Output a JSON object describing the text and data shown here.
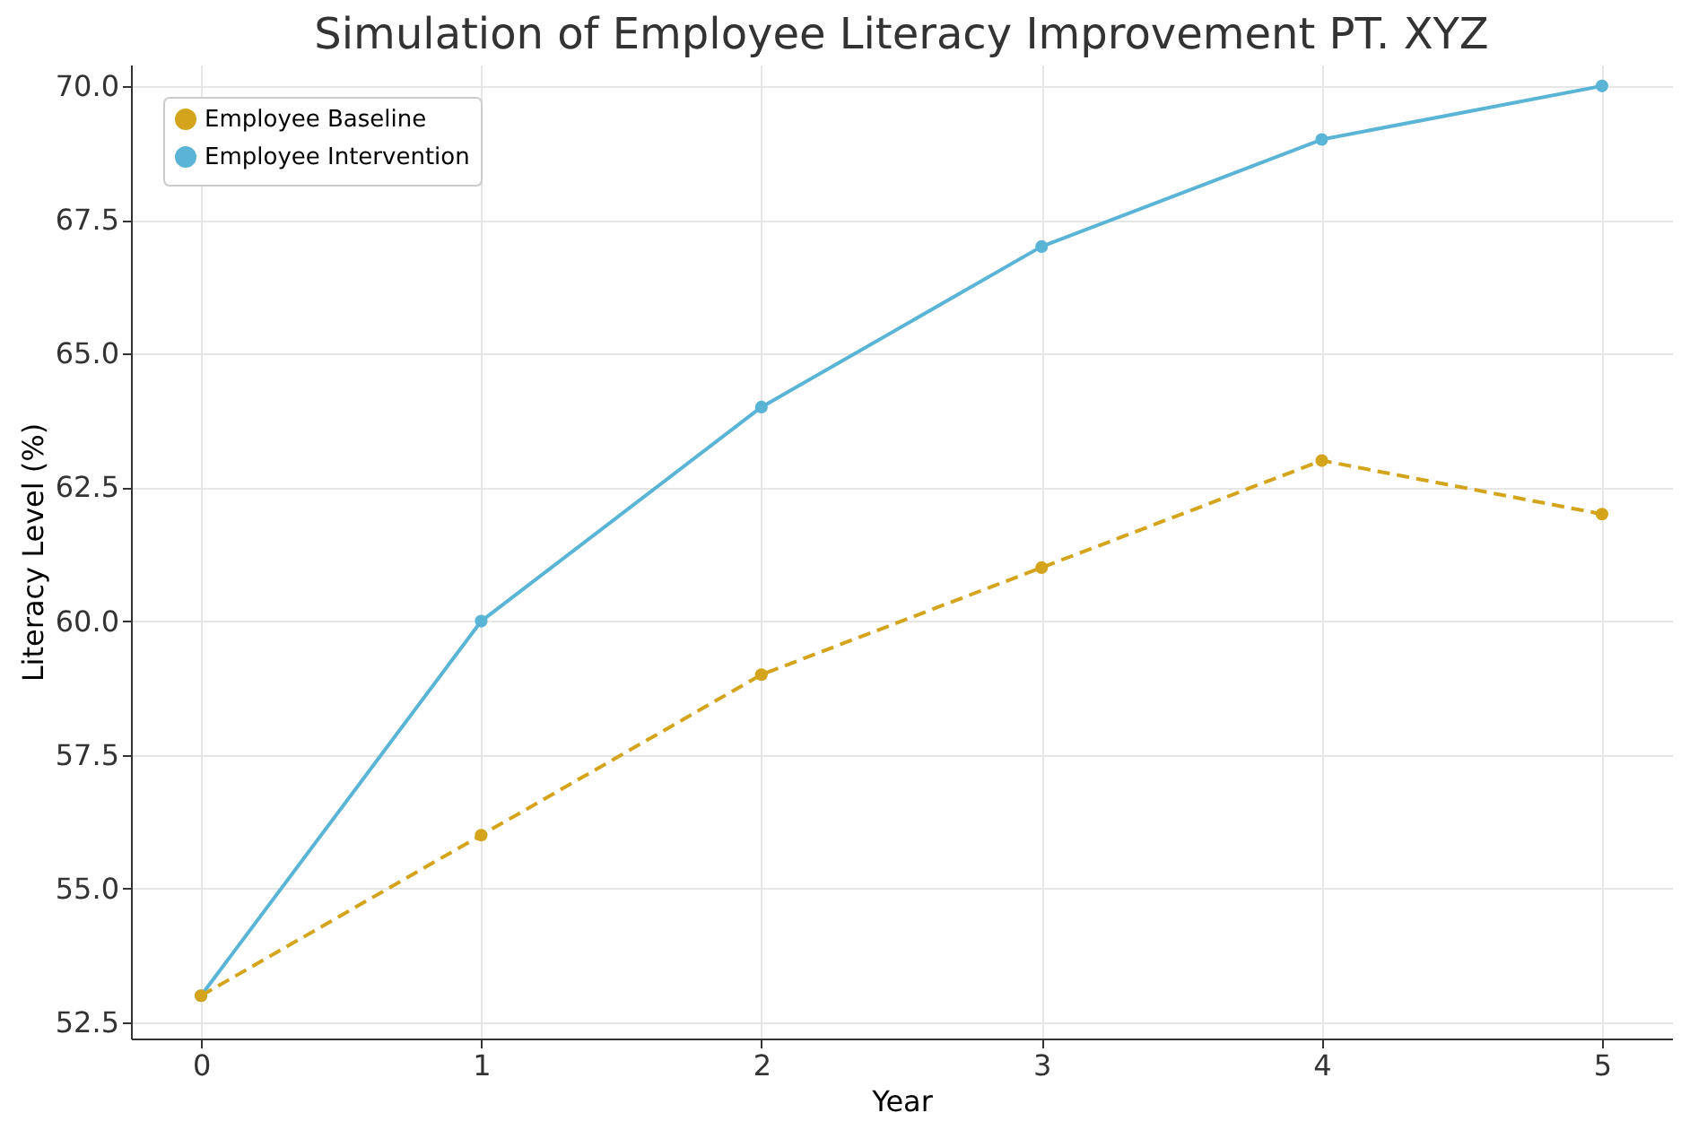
{
  "chart_data": {
    "type": "line",
    "title": "Simulation of Employee Literacy Improvement PT. XYZ",
    "xlabel": "Year",
    "ylabel": "Literacy Level (%)",
    "x": [
      0,
      1,
      2,
      3,
      4,
      5
    ],
    "series": [
      {
        "name": "Employee Baseline",
        "color": "#d4a51c",
        "line_style": "dashed",
        "values": [
          53,
          56,
          59,
          61,
          63,
          62
        ]
      },
      {
        "name": "Employee Intervention",
        "color": "#5ab4d6",
        "line_style": "solid",
        "values": [
          53,
          60,
          64,
          67,
          69,
          70
        ]
      }
    ],
    "xlim": [
      -0.25,
      5.25
    ],
    "xticks": [
      0,
      1,
      2,
      3,
      4,
      5
    ],
    "ylim": [
      52.2,
      70.4
    ],
    "yticks": [
      52.5,
      {
        "value": 55,
        "label": "55.0"
      },
      57.5,
      {
        "value": 60,
        "label": "60.0"
      },
      62.5,
      {
        "value": 65,
        "label": "65.0"
      },
      67.5,
      {
        "value": 70,
        "label": "70.0"
      }
    ],
    "grid": true,
    "legend": "top left",
    "marker": "circle"
  }
}
